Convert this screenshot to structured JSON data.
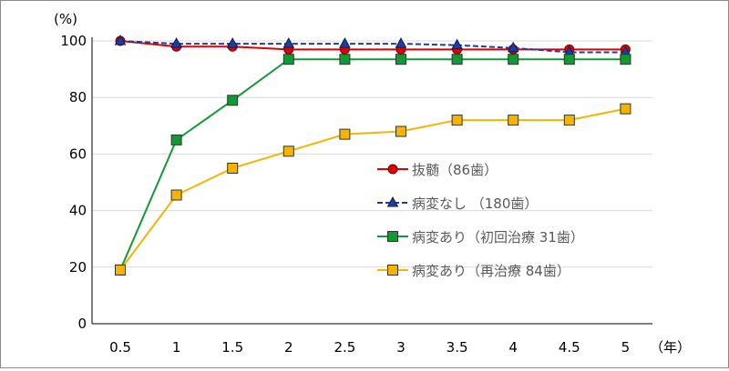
{
  "chart_data": {
    "type": "line",
    "x_unit_label": "（年）",
    "y_unit_label": "(%)",
    "x": [
      0.5,
      1,
      1.5,
      2,
      2.5,
      3,
      3.5,
      4,
      4.5,
      5
    ],
    "x_tick_labels": [
      "0.5",
      "1",
      "1.5",
      "2",
      "2.5",
      "3",
      "3.5",
      "4",
      "4.5",
      "5"
    ],
    "ylim": [
      0,
      100
    ],
    "y_ticks": [
      0,
      20,
      40,
      60,
      80,
      100
    ],
    "grid": "horizontal",
    "legend_position": "right-middle",
    "series": [
      {
        "name": "抜髄（86歯）",
        "color": "#e00000",
        "marker": "circle",
        "line_style": "solid",
        "values": [
          100,
          98,
          98,
          97,
          97,
          97,
          97,
          97,
          97,
          97
        ]
      },
      {
        "name": "病変なし （180歯）",
        "color": "#1f3d99",
        "marker": "triangle",
        "line_style": "dashed",
        "values": [
          100,
          99,
          99,
          99,
          99,
          99,
          98.5,
          97.5,
          96,
          96
        ]
      },
      {
        "name": "病変あり（初回治療 31歯）",
        "color": "#119933",
        "marker": "square",
        "line_style": "solid",
        "values": [
          19,
          65,
          79,
          93.5,
          93.5,
          93.5,
          93.5,
          93.5,
          93.5,
          93.5
        ]
      },
      {
        "name": "病変あり（再治療 84歯）",
        "color": "#f5b400",
        "marker": "square",
        "line_style": "solid",
        "values": [
          19,
          45.5,
          55,
          61,
          67,
          68,
          72,
          72,
          72,
          76
        ]
      }
    ]
  }
}
